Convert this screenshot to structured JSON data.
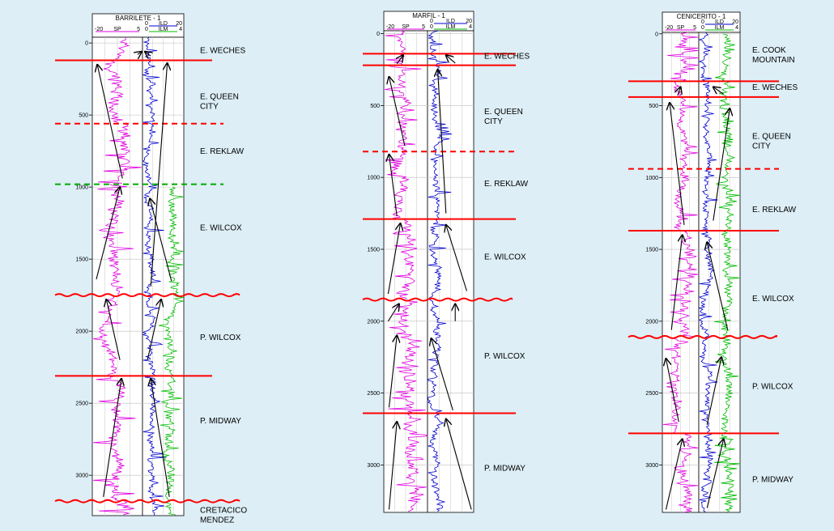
{
  "colors": {
    "background": "#ddeef6",
    "track": "#ffffff",
    "sp": "#e000e0",
    "ild": "#0000cc",
    "ilm": "#00bb00",
    "boundary": "#ff0000",
    "dashed_green": "#00aa00",
    "arrow": "#000000"
  },
  "wells": [
    {
      "name": "BARRILETE - 1",
      "header": {
        "sp_min": "-20",
        "sp_label": "SP",
        "sp_max": "5",
        "ild_min": "0",
        "ild_label": "ILD",
        "ild_max": "20",
        "ilm_min": "0",
        "ilm_label": "ILM",
        "ilm_max": "4"
      },
      "depth_range": [
        -40,
        3280
      ],
      "depth_ticks": [
        0,
        500,
        1000,
        1500,
        2000,
        2500,
        3000
      ],
      "depth_tick_labels": [
        "0",
        "500",
        "1000",
        "1500",
        "2000",
        "2500",
        "3000"
      ],
      "top_ilm_depth": 1000,
      "boundaries": [
        {
          "depth": 120,
          "style": "solid",
          "color": "#ff0000"
        },
        {
          "depth": 560,
          "style": "dashed",
          "color": "#ff0000"
        },
        {
          "depth": 980,
          "style": "dashed",
          "color": "#00aa00"
        },
        {
          "depth": 1750,
          "style": "wavy",
          "color": "#ff0000"
        },
        {
          "depth": 2310,
          "style": "solid",
          "color": "#ff0000"
        },
        {
          "depth": 3180,
          "style": "wavy",
          "color": "#ff0000"
        }
      ],
      "formations": [
        {
          "lines": [
            "E. WECHES"
          ],
          "depth": 70
        },
        {
          "lines": [
            "E. QUEEN",
            "CITY"
          ],
          "depth": 390
        },
        {
          "lines": [
            "E. REKLAW"
          ],
          "depth": 770
        },
        {
          "lines": [
            "E. WILCOX"
          ],
          "depth": 1300
        },
        {
          "lines": [
            "P.  WILCOX"
          ],
          "depth": 2060
        },
        {
          "lines": [
            "P.  MIDWAY"
          ],
          "depth": 2640
        },
        {
          "lines": [
            "CRETACICO",
            "MENDEZ"
          ],
          "depth": 3260
        }
      ],
      "arrows": [
        {
          "t": "sp",
          "d1": 80,
          "f1": 0.9,
          "d2": 60,
          "f2": 0.98
        },
        {
          "t": "sp",
          "d1": 940,
          "f1": 0.6,
          "d2": 150,
          "f2": 0.1
        },
        {
          "t": "sp",
          "d1": 1640,
          "f1": 0.08,
          "d2": 1000,
          "f2": 0.55
        },
        {
          "t": "sp",
          "d1": 2200,
          "f1": 0.55,
          "d2": 1780,
          "f2": 0.28
        },
        {
          "t": "sp",
          "d1": 3150,
          "f1": 0.22,
          "d2": 2330,
          "f2": 0.58
        },
        {
          "t": "log",
          "d1": 90,
          "f1": 0.2,
          "d2": 60,
          "f2": 0.06
        },
        {
          "t": "log",
          "d1": 1690,
          "f1": 0.2,
          "d2": 140,
          "f2": 0.6
        },
        {
          "t": "log",
          "d1": 1650,
          "f1": 0.7,
          "d2": 1080,
          "f2": 0.18
        },
        {
          "t": "log",
          "d1": 2200,
          "f1": 0.12,
          "d2": 1780,
          "f2": 0.45
        },
        {
          "t": "log",
          "d1": 3150,
          "f1": 0.65,
          "d2": 2330,
          "f2": 0.2
        }
      ]
    },
    {
      "name": "MARFIL - 1",
      "header": {
        "sp_min": "-20",
        "sp_label": "SP",
        "sp_max": "5",
        "ild_min": "0",
        "ild_label": "ILD",
        "ild_max": "20",
        "ilm_min": "0",
        "ilm_label": "ILM",
        "ilm_max": "4"
      },
      "depth_range": [
        -20,
        3330
      ],
      "depth_ticks": [
        0,
        500,
        1000,
        1500,
        2000,
        2500,
        3000
      ],
      "depth_tick_labels": [
        "0",
        "500",
        "1000",
        "1500",
        "2000",
        "2500",
        "3000"
      ],
      "top_ilm_depth": null,
      "boundaries": [
        {
          "depth": 140,
          "style": "solid",
          "color": "#ff0000"
        },
        {
          "depth": 220,
          "style": "solid",
          "color": "#ff0000"
        },
        {
          "depth": 820,
          "style": "dashed",
          "color": "#ff0000"
        },
        {
          "depth": 1290,
          "style": "solid",
          "color": "#ff0000"
        },
        {
          "depth": 1850,
          "style": "wavy",
          "color": "#ff0000"
        },
        {
          "depth": 2640,
          "style": "solid",
          "color": "#ff0000"
        }
      ],
      "formations": [
        {
          "lines": [
            "E. WECHES"
          ],
          "depth": 175
        },
        {
          "lines": [
            "E. QUEEN",
            "CITY"
          ],
          "depth": 560
        },
        {
          "lines": [
            "E. REKLAW"
          ],
          "depth": 1060
        },
        {
          "lines": [
            "E. WILCOX"
          ],
          "depth": 1570
        },
        {
          "lines": [
            "P.  WILCOX"
          ],
          "depth": 2260
        },
        {
          "lines": [
            "P.  MIDWAY"
          ],
          "depth": 3040
        }
      ],
      "arrows": [
        {
          "t": "sp",
          "d1": 210,
          "f1": 0.3,
          "d2": 150,
          "f2": 0.44
        },
        {
          "t": "sp",
          "d1": 780,
          "f1": 0.48,
          "d2": 300,
          "f2": 0.12
        },
        {
          "t": "sp",
          "d1": 1270,
          "f1": 0.3,
          "d2": 840,
          "f2": 0.12
        },
        {
          "t": "sp",
          "d1": 1810,
          "f1": 0.1,
          "d2": 1320,
          "f2": 0.38
        },
        {
          "t": "sp",
          "d1": 2000,
          "f1": 0.1,
          "d2": 1880,
          "f2": 0.35
        },
        {
          "t": "sp",
          "d1": 2600,
          "f1": 0.12,
          "d2": 2100,
          "f2": 0.3
        },
        {
          "t": "sp",
          "d1": 3310,
          "f1": 0.12,
          "d2": 2700,
          "f2": 0.3
        },
        {
          "t": "log",
          "d1": 205,
          "f1": 0.6,
          "d2": 150,
          "f2": 0.4
        },
        {
          "t": "log",
          "d1": 1250,
          "f1": 0.4,
          "d2": 250,
          "f2": 0.22
        },
        {
          "t": "log",
          "d1": 1790,
          "f1": 0.85,
          "d2": 1330,
          "f2": 0.4
        },
        {
          "t": "log",
          "d1": 2000,
          "f1": 0.6,
          "d2": 1880,
          "f2": 0.6
        },
        {
          "t": "log",
          "d1": 2620,
          "f1": 0.55,
          "d2": 2120,
          "f2": 0.08
        },
        {
          "t": "log",
          "d1": 3310,
          "f1": 0.95,
          "d2": 2680,
          "f2": 0.4
        }
      ]
    },
    {
      "name": "CENICERITO - 1",
      "header": {
        "sp_min": "-20",
        "sp_label": "SP",
        "sp_max": "5",
        "ild_min": "0",
        "ild_label": "ILD",
        "ild_max": "20",
        "ilm_min": "0",
        "ilm_label": "ILM",
        "ilm_max": "4"
      },
      "depth_range": [
        -10,
        3330
      ],
      "depth_ticks": [
        0,
        500,
        1000,
        1500,
        2000,
        2500,
        3000
      ],
      "depth_tick_labels": [
        "0",
        "500",
        "1000",
        "1500",
        "2000",
        "2500",
        "3000"
      ],
      "top_ilm_depth": 0,
      "boundaries": [
        {
          "depth": 330,
          "style": "solid",
          "color": "#ff0000"
        },
        {
          "depth": 440,
          "style": "solid",
          "color": "#ff0000"
        },
        {
          "depth": 940,
          "style": "dashed",
          "color": "#ff0000"
        },
        {
          "depth": 1370,
          "style": "solid",
          "color": "#ff0000"
        },
        {
          "depth": 2110,
          "style": "wavy",
          "color": "#ff0000"
        },
        {
          "depth": 2780,
          "style": "solid",
          "color": "#ff0000"
        }
      ],
      "formations": [
        {
          "lines": [
            "E. COOK",
            "MOUNTAIN"
          ],
          "depth": 130
        },
        {
          "lines": [
            "E. WECHES"
          ],
          "depth": 390
        },
        {
          "lines": [
            "E. QUEEN",
            "CITY"
          ],
          "depth": 730
        },
        {
          "lines": [
            "E. REKLAW"
          ],
          "depth": 1240
        },
        {
          "lines": [
            "E. WILCOX"
          ],
          "depth": 1860
        },
        {
          "lines": [
            "P.  WILCOX"
          ],
          "depth": 2470
        },
        {
          "lines": [
            "P.  MIDWAY"
          ],
          "depth": 3120
        }
      ],
      "arrows": [
        {
          "t": "sp",
          "d1": 430,
          "f1": 0.42,
          "d2": 370,
          "f2": 0.5
        },
        {
          "t": "sp",
          "d1": 1330,
          "f1": 0.6,
          "d2": 480,
          "f2": 0.2
        },
        {
          "t": "sp",
          "d1": 2060,
          "f1": 0.25,
          "d2": 1400,
          "f2": 0.55
        },
        {
          "t": "sp",
          "d1": 2700,
          "f1": 0.45,
          "d2": 2260,
          "f2": 0.1
        },
        {
          "t": "sp",
          "d1": 3310,
          "f1": 0.1,
          "d2": 2820,
          "f2": 0.55
        },
        {
          "t": "log",
          "d1": 420,
          "f1": 0.6,
          "d2": 370,
          "f2": 0.35
        },
        {
          "t": "log",
          "d1": 1300,
          "f1": 0.35,
          "d2": 520,
          "f2": 0.75
        },
        {
          "t": "log",
          "d1": 2060,
          "f1": 0.7,
          "d2": 1450,
          "f2": 0.2
        },
        {
          "t": "log",
          "d1": 2720,
          "f1": 0.2,
          "d2": 2250,
          "f2": 0.55
        },
        {
          "t": "log",
          "d1": 3300,
          "f1": 0.2,
          "d2": 2820,
          "f2": 0.6
        }
      ]
    }
  ]
}
